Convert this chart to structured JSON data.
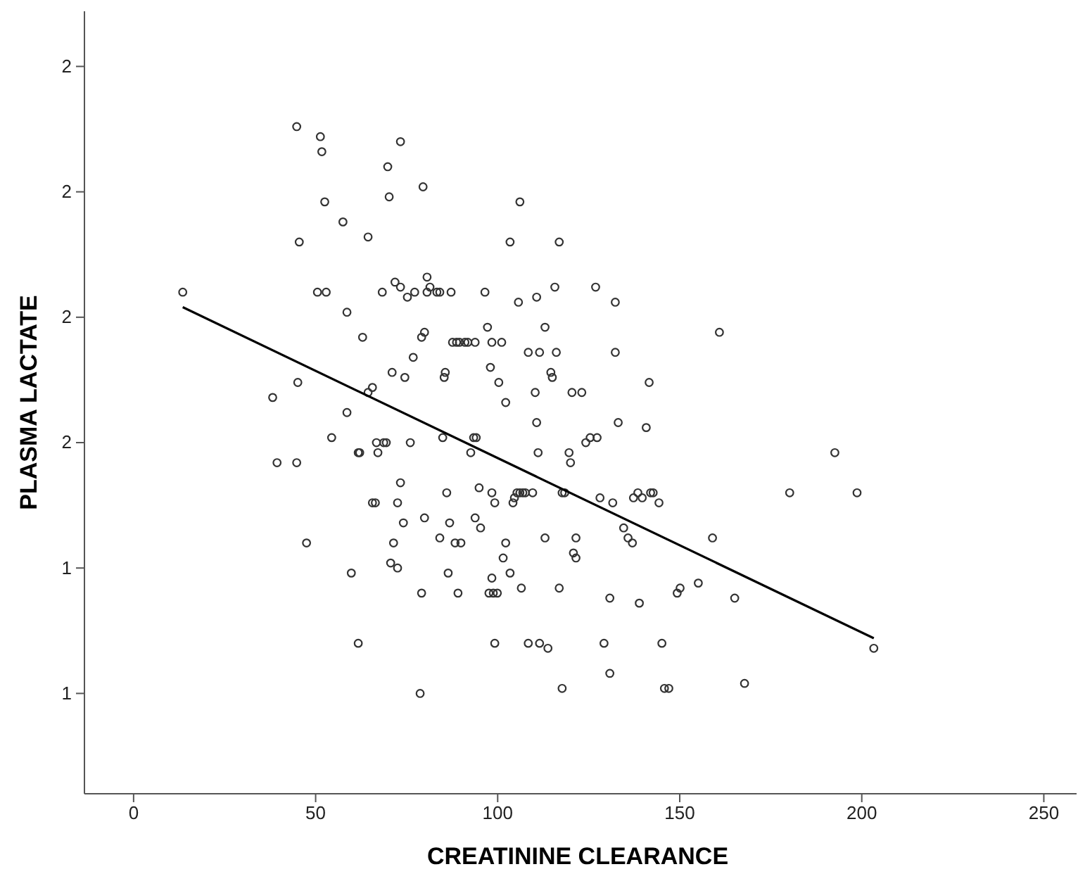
{
  "chart_data": {
    "type": "scatter",
    "xlabel": "CREATININE CLEARANCE",
    "ylabel": "PLASMA LACTATE",
    "xlim": [
      -13.5,
      259
    ],
    "ylim": [
      0.8,
      2.36
    ],
    "xticks": [
      0,
      50,
      100,
      150,
      200,
      250
    ],
    "yticks": [
      {
        "value": 1.0,
        "label": "1"
      },
      {
        "value": 1.25,
        "label": "1"
      },
      {
        "value": 1.5,
        "label": "2"
      },
      {
        "value": 1.75,
        "label": "2"
      },
      {
        "value": 2.0,
        "label": "2"
      },
      {
        "value": 2.25,
        "label": "2"
      }
    ],
    "grid": false,
    "series": [
      {
        "marker": "circle",
        "color": "#333333",
        "x": [
          13.5,
          38.2,
          39.4,
          44.8,
          47.5,
          44.8,
          45.1,
          51.3,
          51.7,
          52.5,
          45.5,
          50.5,
          52.9,
          54.4,
          57.5,
          58.6,
          58.6,
          59.8,
          61.7,
          61.7,
          62.1,
          62.9,
          64.4,
          64.4,
          65.6,
          66.4,
          65.6,
          66.7,
          67.1,
          68.3,
          68.7,
          69.4,
          70.6,
          69.8,
          70.2,
          71.0,
          71.4,
          71.8,
          72.5,
          72.5,
          73.3,
          73.3,
          74.1,
          74.5,
          73.3,
          75.2,
          76.0,
          76.8,
          77.2,
          78.7,
          79.5,
          79.1,
          79.9,
          80.6,
          79.9,
          79.1,
          80.6,
          81.4,
          83.3,
          84.1,
          84.1,
          85.3,
          84.9,
          85.6,
          86.0,
          86.4,
          86.8,
          87.2,
          87.6,
          88.3,
          88.7,
          89.1,
          89.5,
          89.9,
          91.0,
          91.8,
          92.6,
          93.4,
          93.8,
          93.8,
          94.1,
          94.9,
          95.3,
          96.5,
          97.2,
          97.6,
          98.0,
          98.4,
          98.4,
          98.4,
          98.8,
          99.2,
          99.2,
          99.9,
          100.3,
          101.1,
          101.5,
          102.2,
          102.2,
          103.4,
          103.4,
          104.2,
          104.6,
          105.3,
          105.7,
          106.1,
          106.1,
          106.5,
          106.9,
          107.6,
          108.4,
          108.4,
          109.6,
          110.3,
          110.7,
          110.7,
          111.1,
          111.5,
          111.5,
          113.0,
          113.0,
          113.8,
          114.6,
          115.0,
          115.7,
          116.1,
          116.9,
          116.9,
          117.7,
          117.7,
          118.4,
          119.6,
          120.0,
          120.4,
          120.8,
          121.5,
          121.5,
          123.1,
          124.2,
          125.4,
          126.9,
          127.3,
          128.1,
          129.2,
          130.8,
          131.6,
          130.8,
          132.3,
          132.3,
          133.1,
          134.6,
          135.8,
          137.0,
          137.3,
          138.5,
          138.9,
          139.7,
          140.8,
          141.6,
          142.0,
          142.7,
          144.3,
          145.1,
          145.8,
          147.0,
          149.3,
          150.1,
          155.1,
          159.0,
          160.9,
          165.1,
          167.8,
          180.2,
          192.6,
          198.7,
          203.3
        ],
        "values": [
          1.8,
          1.59,
          1.46,
          1.46,
          1.3,
          2.13,
          1.62,
          2.11,
          2.08,
          1.98,
          1.9,
          1.8,
          1.8,
          1.51,
          1.94,
          1.76,
          1.56,
          1.24,
          1.1,
          1.48,
          1.48,
          1.71,
          1.91,
          1.6,
          1.61,
          1.38,
          1.38,
          1.5,
          1.48,
          1.8,
          1.5,
          1.5,
          1.26,
          2.05,
          1.99,
          1.64,
          1.3,
          1.82,
          1.25,
          1.38,
          1.42,
          1.81,
          1.34,
          1.63,
          2.1,
          1.79,
          1.5,
          1.67,
          1.8,
          1.0,
          2.01,
          1.2,
          1.35,
          1.83,
          1.72,
          1.71,
          1.8,
          1.81,
          1.8,
          1.8,
          1.31,
          1.63,
          1.51,
          1.64,
          1.4,
          1.24,
          1.34,
          1.8,
          1.7,
          1.3,
          1.7,
          1.2,
          1.7,
          1.3,
          1.7,
          1.7,
          1.48,
          1.51,
          1.7,
          1.35,
          1.51,
          1.41,
          1.33,
          1.8,
          1.73,
          1.2,
          1.65,
          1.7,
          1.4,
          1.23,
          1.2,
          1.1,
          1.38,
          1.2,
          1.62,
          1.7,
          1.27,
          1.58,
          1.3,
          1.9,
          1.24,
          1.38,
          1.39,
          1.4,
          1.78,
          1.98,
          1.4,
          1.21,
          1.4,
          1.4,
          1.1,
          1.68,
          1.4,
          1.6,
          1.79,
          1.54,
          1.48,
          1.1,
          1.68,
          1.31,
          1.73,
          1.09,
          1.64,
          1.63,
          1.81,
          1.68,
          1.9,
          1.21,
          1.01,
          1.4,
          1.4,
          1.48,
          1.46,
          1.6,
          1.28,
          1.31,
          1.27,
          1.6,
          1.5,
          1.51,
          1.81,
          1.51,
          1.39,
          1.1,
          1.04,
          1.38,
          1.19,
          1.78,
          1.68,
          1.54,
          1.33,
          1.31,
          1.3,
          1.39,
          1.4,
          1.18,
          1.39,
          1.53,
          1.62,
          1.4,
          1.4,
          1.38,
          1.1,
          1.01,
          1.01,
          1.2,
          1.21,
          1.22,
          1.31,
          1.72,
          1.19,
          1.02,
          1.4,
          1.48,
          1.4,
          1.09
        ]
      },
      {
        "type": "line",
        "marker": "none",
        "color": "#000000",
        "x": [
          13.5,
          203.3
        ],
        "values": [
          1.77,
          1.11
        ]
      }
    ]
  }
}
